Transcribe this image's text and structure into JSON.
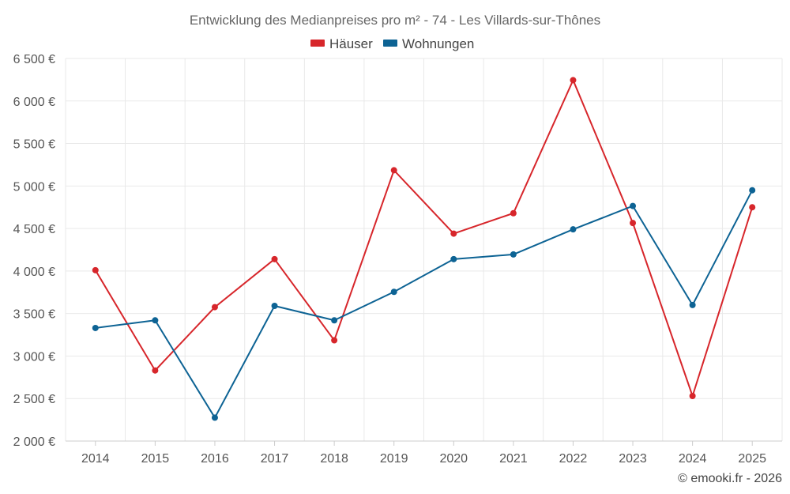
{
  "chart_data": {
    "type": "line",
    "title": "Entwicklung des Medianpreises pro m² - 74 - Les Villards-sur-Thônes",
    "categories": [
      "2014",
      "2015",
      "2016",
      "2017",
      "2018",
      "2019",
      "2020",
      "2021",
      "2022",
      "2023",
      "2024",
      "2025"
    ],
    "series": [
      {
        "name": "Häuser",
        "color": "#d7262b",
        "values": [
          4010,
          2830,
          3575,
          4140,
          3185,
          5185,
          4440,
          4680,
          6245,
          4565,
          2530,
          4750
        ]
      },
      {
        "name": "Wohnungen",
        "color": "#0d6394",
        "values": [
          3330,
          3420,
          2275,
          3590,
          3420,
          3755,
          4140,
          4195,
          4490,
          4765,
          3600,
          4950
        ]
      }
    ],
    "ylim": [
      2000,
      6500
    ],
    "yticks": [
      2000,
      2500,
      3000,
      3500,
      4000,
      4500,
      5000,
      5500,
      6000,
      6500
    ],
    "ytick_labels": [
      "2 000 €",
      "2 500 €",
      "3 000 €",
      "3 500 €",
      "4 000 €",
      "4 500 €",
      "5 000 €",
      "5 500 €",
      "6 000 €",
      "6 500 €"
    ],
    "xlabel": "",
    "ylabel": "",
    "grid": true,
    "legend_position": "top-center"
  },
  "credit": "© emooki.fr - 2026"
}
